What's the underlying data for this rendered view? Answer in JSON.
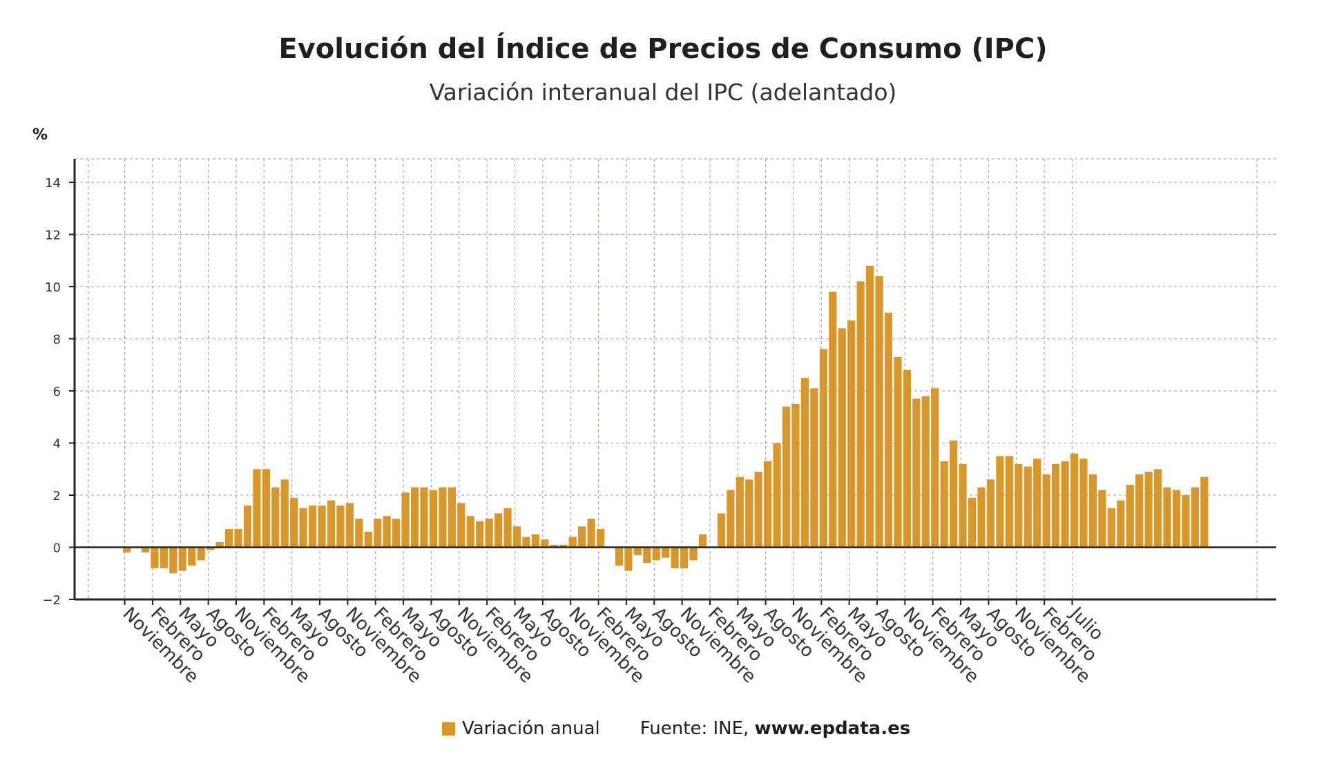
{
  "header": {
    "title": "Evolución del Índice de Precios de Consumo (IPC)",
    "subtitle": "Variación interanual del IPC (adelantado)",
    "unit": "%"
  },
  "legend": {
    "series_label": "Variación anual",
    "source_label": "Fuente: INE,",
    "source_site": "www.epdata.es"
  },
  "colors": {
    "bar": "#d9962b",
    "axis": "#222222",
    "grid": "#b9a6cc",
    "text": "#333333"
  },
  "chart_data": {
    "type": "bar",
    "title": "Evolución del Índice de Precios de Consumo (IPC)",
    "subtitle": "Variación interanual del IPC (adelantado)",
    "ylabel": "%",
    "ylim": [
      -2,
      15
    ],
    "yticks": [
      -2,
      0,
      2,
      4,
      6,
      8,
      10,
      12,
      14
    ],
    "grid": true,
    "legend_position": "bottom",
    "x_tick_labels": [
      "Noviembre",
      "Febrero",
      "Mayo",
      "Agosto",
      "Noviembre",
      "Febrero",
      "Mayo",
      "Agosto",
      "Noviembre",
      "Febrero",
      "Mayo",
      "Agosto",
      "Noviembre",
      "Febrero",
      "Mayo",
      "Agosto",
      "Noviembre",
      "Febrero",
      "Mayo",
      "Agosto",
      "Noviembre",
      "Febrero",
      "Mayo",
      "Agosto",
      "Noviembre",
      "Febrero",
      "Mayo",
      "Agosto",
      "Noviembre",
      "Febrero",
      "Mayo",
      "Agosto",
      "Noviembre",
      "Febrero",
      "Julio"
    ],
    "series": [
      {
        "name": "Variación anual",
        "values": [
          -0.2,
          0,
          -0.2,
          -0.8,
          -0.8,
          -1.0,
          -0.9,
          -0.7,
          -0.5,
          -0.1,
          0.2,
          0.7,
          0.7,
          1.6,
          3.0,
          3.0,
          2.3,
          2.6,
          1.9,
          1.5,
          1.6,
          1.6,
          1.8,
          1.6,
          1.7,
          1.1,
          0.6,
          1.1,
          1.2,
          1.1,
          2.1,
          2.3,
          2.3,
          2.2,
          2.3,
          2.3,
          1.7,
          1.2,
          1.0,
          1.1,
          1.3,
          1.5,
          0.8,
          0.4,
          0.5,
          0.3,
          0.1,
          0.1,
          0.4,
          0.8,
          1.1,
          0.7,
          0,
          -0.7,
          -0.9,
          -0.3,
          -0.6,
          -0.5,
          -0.4,
          -0.8,
          -0.8,
          -0.5,
          0.5,
          0,
          1.3,
          2.2,
          2.7,
          2.6,
          2.9,
          3.3,
          4.0,
          5.4,
          5.5,
          6.5,
          6.1,
          7.6,
          9.8,
          8.4,
          8.7,
          10.2,
          10.8,
          10.4,
          9.0,
          7.3,
          6.8,
          5.7,
          5.8,
          6.1,
          3.3,
          4.1,
          3.2,
          1.9,
          2.3,
          2.6,
          3.5,
          3.5,
          3.2,
          3.1,
          3.4,
          2.8,
          3.2,
          3.3,
          3.6,
          3.4,
          2.8,
          2.2,
          1.5,
          1.8,
          2.4,
          2.8,
          2.9,
          3.0,
          2.3,
          2.2,
          2.0,
          2.3,
          2.7
        ]
      }
    ]
  }
}
